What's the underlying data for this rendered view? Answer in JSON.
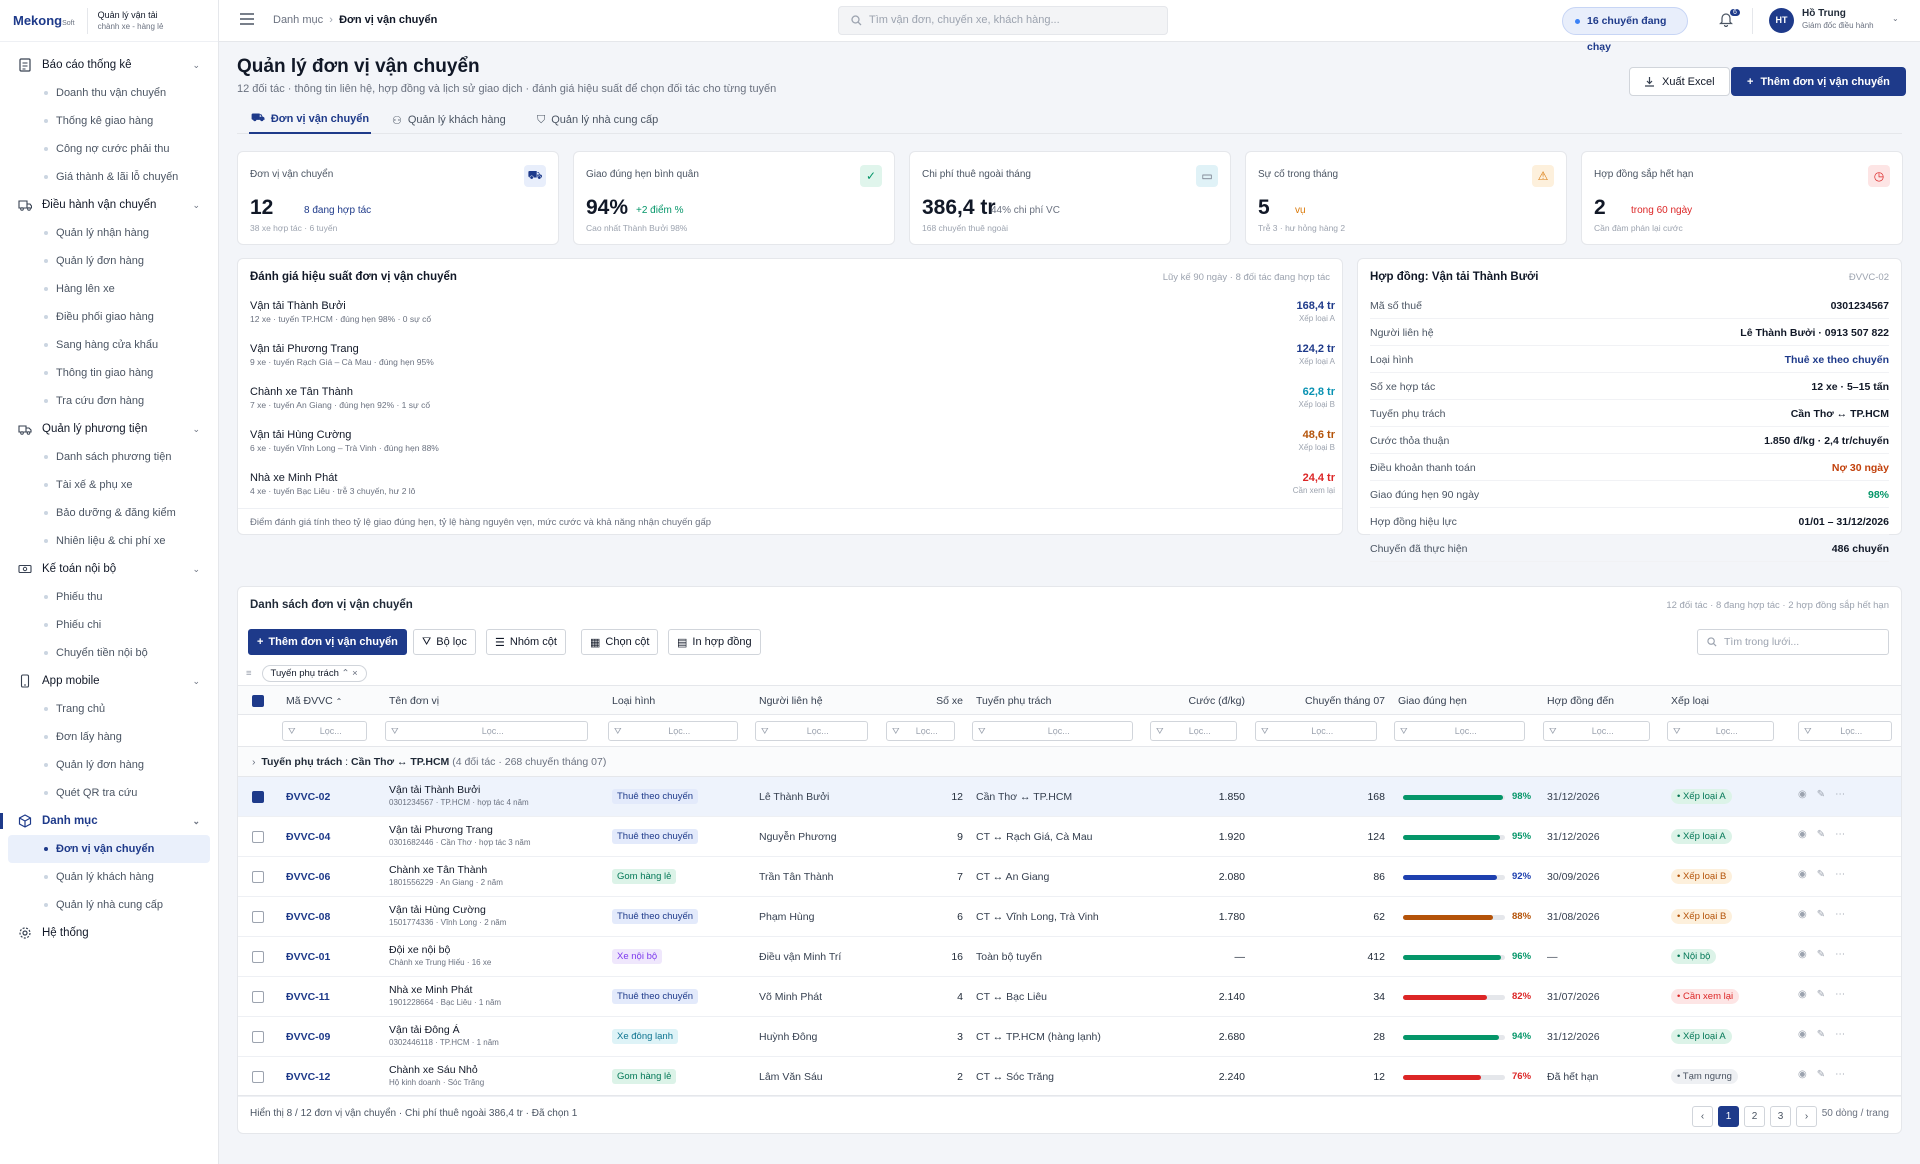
{
  "brand": {
    "logo": "Mekong",
    "logo_small": "Soft",
    "subtitle": "Quản lý vận tải",
    "subtitle2": "chành xe - hàng lẻ"
  },
  "sidebar": {
    "groups": [
      {
        "label": "Báo cáo thống kê",
        "icon": "report-icon",
        "items": [
          "Doanh thu vận chuyển",
          "Thống kê giao hàng",
          "Công nợ cước phải thu",
          "Giá thành & lãi lỗ chuyến"
        ]
      },
      {
        "label": "Điều hành vận chuyển",
        "icon": "truck-icon",
        "items": [
          "Quản lý nhận hàng",
          "Quản lý đơn hàng",
          "Hàng lên xe",
          "Điều phối giao hàng",
          "Sang hàng cửa khẩu",
          "Thông tin giao hàng",
          "Tra cứu đơn hàng"
        ]
      },
      {
        "label": "Quản lý phương tiện",
        "icon": "vehicle-icon",
        "items": [
          "Danh sách phương tiện",
          "Tài xế & phụ xe",
          "Bảo dưỡng & đăng kiểm",
          "Nhiên liệu & chi phí xe"
        ]
      },
      {
        "label": "Kế toán nội bộ",
        "icon": "money-icon",
        "items": [
          "Phiếu thu",
          "Phiếu chi",
          "Chuyển tiền nội bộ"
        ]
      },
      {
        "label": "App mobile",
        "icon": "mobile-icon",
        "items": [
          "Trang chủ",
          "Đơn lấy hàng",
          "Quản lý đơn hàng",
          "Quét QR tra cứu"
        ]
      },
      {
        "label": "Danh mục",
        "icon": "box-icon",
        "items": [
          "Đơn vị vận chuyển",
          "Quản lý khách hàng",
          "Quản lý nhà cung cấp"
        ]
      }
    ],
    "system": "Hệ thống"
  },
  "topbar": {
    "crumb_root": "Danh mục",
    "crumb_current": "Đơn vị vận chuyển",
    "search_placeholder": "Tìm vận đơn, chuyến xe, khách hàng...",
    "running": "16 chuyến đang chạy",
    "notif_count": "6",
    "avatar": "HT",
    "user_name": "Hồ Trung",
    "user_role": "Giám đốc điều hành"
  },
  "page": {
    "title": "Quản lý đơn vị vận chuyển",
    "subtitle": "12 đối tác · thông tin liên hệ, hợp đồng và lịch sử giao dịch · đánh giá hiệu suất để chọn đối tác cho từng tuyến",
    "export": "Xuất Excel",
    "add": "Thêm đơn vị vận chuyển"
  },
  "tabs": [
    "Đơn vị vận chuyển",
    "Quản lý khách hàng",
    "Quản lý nhà cung cấp"
  ],
  "kpis": [
    {
      "label": "Đơn vị vận chuyển",
      "value": "12",
      "delta": "8 đang hợp tác",
      "sub": "38 xe hợp tác · 6 tuyến",
      "color": "#1e3a8a",
      "bg": "#e8eefb",
      "icon": "truck-icon"
    },
    {
      "label": "Giao đúng hẹn bình quân",
      "value": "94%",
      "delta": "+2 điểm %",
      "sub": "Cao nhất Thành Bưởi 98%",
      "color": "#059669",
      "bg": "#e0f5ec",
      "icon": "check-circle-icon"
    },
    {
      "label": "Chi phí thuê ngoài tháng",
      "value": "386,4 tr",
      "delta": "44% chi phí VC",
      "sub": "168 chuyến thuê ngoài",
      "color": "#6b7280",
      "bg": "#e0f2f7",
      "icon": "cash-icon"
    },
    {
      "label": "Sự cố trong tháng",
      "value": "5",
      "delta": "vụ",
      "sub": "Trễ 3 · hư hỏng hàng 2",
      "color": "#d97706",
      "bg": "#fdf0dc",
      "icon": "warning-icon"
    },
    {
      "label": "Hợp đồng sắp hết hạn",
      "value": "2",
      "delta": "trong 60 ngày",
      "sub": "Cần đàm phán lại cước",
      "color": "#dc2626",
      "bg": "#fde5e5",
      "icon": "clock-icon"
    }
  ],
  "perf": {
    "title": "Đánh giá hiệu suất đơn vị vận chuyển",
    "meta": "Lũy kế 90 ngày · 8 đối tác đang hợp tác",
    "footer": "Điểm đánh giá tính theo tỷ lệ giao đúng hẹn, tỷ lệ hàng nguyên vẹn, mức cước và khả năng nhận chuyến gấp",
    "rows": [
      {
        "name": "Vận tải Thành Bưởi",
        "desc": "12 xe · tuyến TP.HCM · đúng hẹn 98% · 0 sự cố",
        "value": "168,4 tr",
        "grade": "Xếp loại A",
        "color": "#1e3a8a"
      },
      {
        "name": "Vận tải Phương Trang",
        "desc": "9 xe · tuyến Rạch Giá – Cà Mau · đúng hẹn 95%",
        "value": "124,2 tr",
        "grade": "Xếp loại A",
        "color": "#1e3a8a"
      },
      {
        "name": "Chành xe Tân Thành",
        "desc": "7 xe · tuyến An Giang · đúng hẹn 92% · 1 sự cố",
        "value": "62,8 tr",
        "grade": "Xếp loại B",
        "color": "#0891b2"
      },
      {
        "name": "Vận tải Hùng Cường",
        "desc": "6 xe · tuyến Vĩnh Long – Trà Vinh · đúng hẹn 88%",
        "value": "48,6 tr",
        "grade": "Xếp loại B",
        "color": "#b45309"
      },
      {
        "name": "Nhà xe Minh Phát",
        "desc": "4 xe · tuyến Bạc Liêu · trễ 3 chuyến, hư 2 lô",
        "value": "24,4 tr",
        "grade": "Cần xem lại",
        "color": "#dc2626"
      }
    ]
  },
  "contract": {
    "title": "Hợp đồng: Vận tải Thành Bưởi",
    "code": "ĐVVC-02",
    "rows": [
      {
        "k": "Mã số thuế",
        "v": "0301234567",
        "c": "#111827"
      },
      {
        "k": "Người liên hệ",
        "v": "Lê Thành Bưởi · 0913 507 822",
        "c": "#111827"
      },
      {
        "k": "Loại hình",
        "v": "Thuê xe theo chuyến",
        "c": "#1e3a8a"
      },
      {
        "k": "Số xe hợp tác",
        "v": "12 xe · 5–15 tấn",
        "c": "#111827"
      },
      {
        "k": "Tuyến phụ trách",
        "v": "Cần Thơ ↔ TP.HCM",
        "c": "#111827"
      },
      {
        "k": "Cước thỏa thuận",
        "v": "1.850 đ/kg · 2,4 tr/chuyến",
        "c": "#111827"
      },
      {
        "k": "Điều khoản thanh toán",
        "v": "Nợ 30 ngày",
        "c": "#c2410c"
      },
      {
        "k": "Giao đúng hẹn 90 ngày",
        "v": "98%",
        "c": "#059669"
      },
      {
        "k": "Hợp đồng hiệu lực",
        "v": "01/01 – 31/12/2026",
        "c": "#111827"
      },
      {
        "k": "Chuyến đã thực hiện",
        "v": "486 chuyến",
        "c": "#111827"
      }
    ]
  },
  "grid": {
    "title": "Danh sách đơn vị vận chuyển",
    "meta": "12 đối tác · 8 đang hợp tác · 2 hợp đồng sắp hết hạn",
    "tools": [
      "Thêm đơn vị vận chuyển",
      "Bộ lọc",
      "Nhóm cột",
      "Chọn cột",
      "In hợp đồng"
    ],
    "search": "Tìm trong lưới...",
    "chip": "Tuyến phụ trách",
    "filter_ph": "Lọc...",
    "headers": [
      "Mã ĐVVC",
      "Tên đơn vị",
      "Loại hình",
      "Người liên hệ",
      "Số xe",
      "Tuyến phụ trách",
      "Cước (đ/kg)",
      "Chuyến tháng 07",
      "Giao đúng hẹn",
      "Hợp đồng đến",
      "Xếp loại"
    ],
    "group_label": "Tuyến phụ trách",
    "group_value": "Cần Thơ ↔ TP.HCM",
    "group_meta": "(4 đối tác · 268 chuyến tháng 07)",
    "rows": [
      {
        "code": "ĐVVC-02",
        "name": "Vận tải Thành Bưởi",
        "desc": "0301234567 · TP.HCM · hợp tác 4 năm",
        "type": "Thuê theo chuyến",
        "tc": "#1e3a8a",
        "tb": "#e3eafb",
        "contact": "Lê Thành Bưởi",
        "trucks": "12",
        "route": "Cần Thơ ↔ TP.HCM",
        "rate": "1.850",
        "trips": "168",
        "ontime": 98,
        "bar": "#059669",
        "until": "31/12/2026",
        "grade": "Xếp loại A",
        "gc": "#047857",
        "gb": "#dcf3e8",
        "sel": true
      },
      {
        "code": "ĐVVC-04",
        "name": "Vận tải Phương Trang",
        "desc": "0301682446 · Cần Thơ · hợp tác 3 năm",
        "type": "Thuê theo chuyến",
        "tc": "#1e3a8a",
        "tb": "#e3eafb",
        "contact": "Nguyễn Phương",
        "trucks": "9",
        "route": "CT ↔ Rạch Giá, Cà Mau",
        "rate": "1.920",
        "trips": "124",
        "ontime": 95,
        "bar": "#059669",
        "until": "31/12/2026",
        "grade": "Xếp loại A",
        "gc": "#047857",
        "gb": "#dcf3e8",
        "sel": false
      },
      {
        "code": "ĐVVC-06",
        "name": "Chành xe Tân Thành",
        "desc": "1801556229 · An Giang · 2 năm",
        "type": "Gom hàng lẻ",
        "tc": "#047857",
        "tb": "#dcf3e8",
        "contact": "Trần Tân Thành",
        "trucks": "7",
        "route": "CT ↔ An Giang",
        "rate": "2.080",
        "trips": "86",
        "ontime": 92,
        "bar": "#1e40af",
        "until": "30/09/2026",
        "grade": "Xếp loại B",
        "gc": "#b45309",
        "gb": "#fdf0dc",
        "sel": false
      },
      {
        "code": "ĐVVC-08",
        "name": "Vận tải Hùng Cường",
        "desc": "1501774336 · Vĩnh Long · 2 năm",
        "type": "Thuê theo chuyến",
        "tc": "#1e3a8a",
        "tb": "#e3eafb",
        "contact": "Phạm Hùng",
        "trucks": "6",
        "route": "CT ↔ Vĩnh Long, Trà Vinh",
        "rate": "1.780",
        "trips": "62",
        "ontime": 88,
        "bar": "#b45309",
        "until": "31/08/2026",
        "grade": "Xếp loại B",
        "gc": "#b45309",
        "gb": "#fdf0dc",
        "sel": false
      },
      {
        "code": "ĐVVC-01",
        "name": "Đội xe nội bộ",
        "desc": "Chành xe Trung Hiếu · 16 xe",
        "type": "Xe nội bộ",
        "tc": "#7c3aed",
        "tb": "#efe7fc",
        "contact": "Điều vận Minh Trí",
        "trucks": "16",
        "route": "Toàn bộ tuyến",
        "rate": "—",
        "trips": "412",
        "ontime": 96,
        "bar": "#059669",
        "until": "—",
        "grade": "Nội bộ",
        "gc": "#047857",
        "gb": "#dcf3e8",
        "sel": false
      },
      {
        "code": "ĐVVC-11",
        "name": "Nhà xe Minh Phát",
        "desc": "1901228664 · Bạc Liêu · 1 năm",
        "type": "Thuê theo chuyến",
        "tc": "#1e3a8a",
        "tb": "#e3eafb",
        "contact": "Võ Minh Phát",
        "trucks": "4",
        "route": "CT ↔ Bạc Liêu",
        "rate": "2.140",
        "trips": "34",
        "ontime": 82,
        "bar": "#dc2626",
        "until": "31/07/2026",
        "grade": "Cần xem lại",
        "gc": "#dc2626",
        "gb": "#fde5e5",
        "sel": false
      },
      {
        "code": "ĐVVC-09",
        "name": "Vận tải Đông Á",
        "desc": "0302446118 · TP.HCM · 1 năm",
        "type": "Xe đông lạnh",
        "tc": "#0e7490",
        "tb": "#def3f7",
        "contact": "Huỳnh Đông",
        "trucks": "3",
        "route": "CT ↔ TP.HCM (hàng lạnh)",
        "rate": "2.680",
        "trips": "28",
        "ontime": 94,
        "bar": "#059669",
        "until": "31/12/2026",
        "grade": "Xếp loại A",
        "gc": "#047857",
        "gb": "#dcf3e8",
        "sel": false
      },
      {
        "code": "ĐVVC-12",
        "name": "Chành xe Sáu Nhỏ",
        "desc": "Hộ kinh doanh · Sóc Trăng",
        "type": "Gom hàng lẻ",
        "tc": "#047857",
        "tb": "#dcf3e8",
        "contact": "Lâm Văn Sáu",
        "trucks": "2",
        "route": "CT ↔ Sóc Trăng",
        "rate": "2.240",
        "trips": "12",
        "ontime": 76,
        "bar": "#dc2626",
        "until": "Đã hết hạn",
        "grade": "Tạm ngưng",
        "gc": "#4b5563",
        "gb": "#eef0f3",
        "sel": false
      }
    ],
    "footer": "Hiển thị 8 / 12 đơn vị vận chuyển · Chi phí thuê ngoài 386,4 tr · Đã chọn 1",
    "pages": [
      "1",
      "2",
      "3"
    ],
    "page_size": "50 dòng / trang"
  }
}
